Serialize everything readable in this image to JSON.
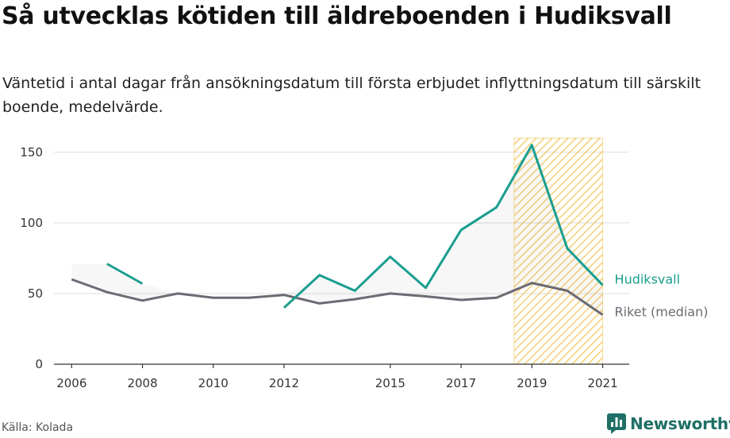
{
  "title": "Så utvecklas kötiden till äldreboenden i Hudiksvall",
  "subtitle": "Väntetid i antal dagar från ansökningsdatum till första erbjudet inflyttningsdatum till särskilt boende, medelvärde.",
  "source": "Källa: Kolada",
  "logo": {
    "text": "Newsworthy",
    "icon": "newsworthy-logo-icon"
  },
  "colors": {
    "hudiksvall": "#1a9e8f",
    "riket": "#6d6a73",
    "highlight": "#f2c14e",
    "grid": "#dddddd"
  },
  "chart_data": {
    "type": "line",
    "x_ticks": [
      "2006",
      "2008",
      "2010",
      "2012",
      "2015",
      "2017",
      "2019",
      "2021"
    ],
    "y_ticks": [
      "0",
      "50",
      "100",
      "150"
    ],
    "xlim": [
      2005.5,
      2021.75
    ],
    "ylim": [
      0,
      160
    ],
    "grid": true,
    "highlight_range": [
      2018.5,
      2021
    ],
    "series": [
      {
        "name": "Hudiksvall",
        "x": [
          2006,
          2007,
          2008,
          2009,
          2010,
          2011,
          2012,
          2013,
          2014,
          2015,
          2016,
          2017,
          2018,
          2019,
          2020,
          2021
        ],
        "values": [
          null,
          71,
          57,
          null,
          null,
          null,
          40,
          63,
          52,
          76,
          54,
          95,
          111,
          155,
          82,
          56
        ]
      },
      {
        "name": "Riket (median)",
        "x": [
          2006,
          2007,
          2008,
          2009,
          2010,
          2011,
          2012,
          2013,
          2014,
          2015,
          2016,
          2017,
          2018,
          2019,
          2020,
          2021
        ],
        "values": [
          60,
          51,
          45,
          50,
          47,
          47,
          49,
          43,
          46,
          50,
          48,
          45.5,
          47,
          57.5,
          52,
          35
        ]
      }
    ]
  }
}
